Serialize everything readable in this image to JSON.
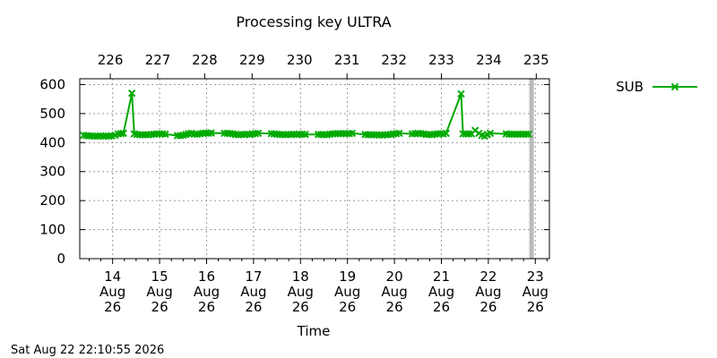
{
  "chart_data": {
    "type": "line",
    "title": "Processing key ULTRA",
    "xlabel": "Time",
    "ylabel": "",
    "ylim": [
      0,
      620
    ],
    "xlim": [
      13.3,
      23.3
    ],
    "y_ticks": [
      0,
      100,
      200,
      300,
      400,
      500,
      600
    ],
    "x_ticks": [
      {
        "value": 14,
        "label_lines": [
          "14",
          "Aug",
          "26"
        ]
      },
      {
        "value": 15,
        "label_lines": [
          "15",
          "Aug",
          "26"
        ]
      },
      {
        "value": 16,
        "label_lines": [
          "16",
          "Aug",
          "26"
        ]
      },
      {
        "value": 17,
        "label_lines": [
          "17",
          "Aug",
          "26"
        ]
      },
      {
        "value": 18,
        "label_lines": [
          "18",
          "Aug",
          "26"
        ]
      },
      {
        "value": 19,
        "label_lines": [
          "19",
          "Aug",
          "26"
        ]
      },
      {
        "value": 20,
        "label_lines": [
          "20",
          "Aug",
          "26"
        ]
      },
      {
        "value": 21,
        "label_lines": [
          "21",
          "Aug",
          "26"
        ]
      },
      {
        "value": 22,
        "label_lines": [
          "22",
          "Aug",
          "26"
        ]
      },
      {
        "value": 23,
        "label_lines": [
          "23",
          "Aug",
          "26"
        ]
      }
    ],
    "top_ticks": [
      {
        "value": 13.95,
        "label": "226"
      },
      {
        "value": 14.96,
        "label": "227"
      },
      {
        "value": 15.96,
        "label": "228"
      },
      {
        "value": 16.97,
        "label": "229"
      },
      {
        "value": 17.98,
        "label": "230"
      },
      {
        "value": 18.99,
        "label": "231"
      },
      {
        "value": 19.99,
        "label": "232"
      },
      {
        "value": 21.0,
        "label": "233"
      },
      {
        "value": 22.01,
        "label": "234"
      },
      {
        "value": 23.02,
        "label": "235"
      }
    ],
    "now_marker_x": 22.92,
    "grid": true,
    "legend_position": "right",
    "series": [
      {
        "name": "SUB",
        "color": "#00aa00",
        "marker": "x",
        "x": [
          13.38,
          13.44,
          13.5,
          13.56,
          13.62,
          13.68,
          13.74,
          13.8,
          13.86,
          13.92,
          13.98,
          14.05,
          14.12,
          14.18,
          14.23,
          14.41,
          14.46,
          14.52,
          14.58,
          14.64,
          14.7,
          14.76,
          14.82,
          14.88,
          14.94,
          15.0,
          15.06,
          15.12,
          15.38,
          15.44,
          15.5,
          15.56,
          15.62,
          15.68,
          15.74,
          15.8,
          15.86,
          15.92,
          15.98,
          16.04,
          16.1,
          16.38,
          16.44,
          16.5,
          16.56,
          16.62,
          16.68,
          16.74,
          16.8,
          16.86,
          16.92,
          16.98,
          17.04,
          17.1,
          17.38,
          17.44,
          17.5,
          17.56,
          17.62,
          17.68,
          17.74,
          17.8,
          17.86,
          17.92,
          17.98,
          18.04,
          18.1,
          18.38,
          18.44,
          18.5,
          18.56,
          18.62,
          18.68,
          18.74,
          18.8,
          18.86,
          18.92,
          18.98,
          19.04,
          19.1,
          19.38,
          19.44,
          19.5,
          19.56,
          19.62,
          19.68,
          19.74,
          19.8,
          19.86,
          19.92,
          19.98,
          20.04,
          20.1,
          20.38,
          20.44,
          20.5,
          20.56,
          20.62,
          20.68,
          20.74,
          20.8,
          20.86,
          20.92,
          20.98,
          21.04,
          21.1,
          21.42,
          21.46,
          21.52,
          21.58,
          21.64,
          21.72,
          21.8,
          21.86,
          21.92,
          21.98,
          22.04,
          22.38,
          22.44,
          22.5,
          22.56,
          22.62,
          22.68,
          22.74,
          22.8,
          22.86
        ],
        "y": [
          425,
          424,
          423,
          423,
          422,
          422,
          423,
          422,
          423,
          422,
          423,
          425,
          430,
          431,
          432,
          570,
          430,
          428,
          427,
          427,
          427,
          427,
          428,
          429,
          430,
          430,
          430,
          429,
          424,
          424,
          425,
          428,
          431,
          432,
          429,
          429,
          430,
          432,
          433,
          432,
          433,
          432,
          432,
          431,
          430,
          428,
          427,
          428,
          428,
          429,
          428,
          430,
          431,
          432,
          431,
          430,
          429,
          428,
          428,
          427,
          428,
          428,
          429,
          428,
          429,
          429,
          428,
          428,
          428,
          427,
          427,
          429,
          430,
          431,
          431,
          431,
          431,
          431,
          431,
          432,
          428,
          427,
          427,
          427,
          427,
          426,
          426,
          427,
          427,
          428,
          430,
          431,
          432,
          430,
          431,
          432,
          431,
          430,
          428,
          428,
          427,
          429,
          430,
          431,
          430,
          432,
          568,
          430,
          430,
          430,
          430,
          442,
          432,
          425,
          422,
          428,
          432,
          430,
          429,
          429,
          429,
          429,
          429,
          429,
          429,
          429
        ]
      }
    ]
  },
  "footer": {
    "timestamp": "Sat Aug 22 22:10:55 2026"
  }
}
